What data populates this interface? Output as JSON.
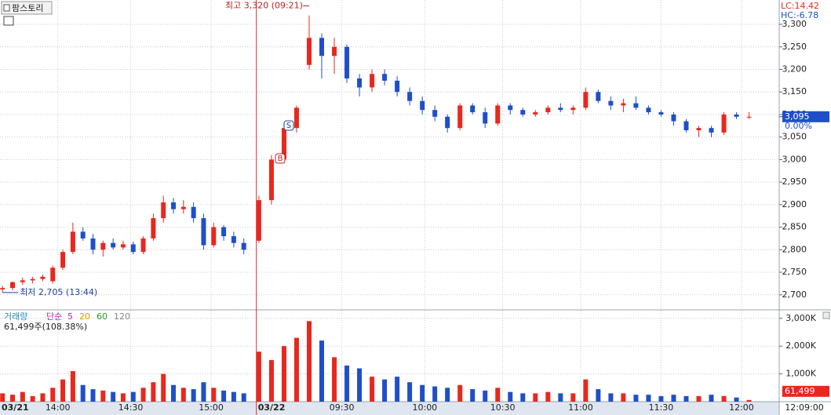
{
  "chart_data": {
    "type": "candlestick",
    "title": "팜스토리",
    "indicators": [
      "LC:14.42",
      "HC:-6.78"
    ],
    "up_color": "#e8281e",
    "down_color": "#1f4fc8",
    "grid": true,
    "x": [
      1,
      5,
      9,
      13,
      17,
      21,
      25,
      29,
      33,
      37,
      41,
      45,
      49,
      53,
      57,
      61,
      65,
      69,
      73,
      77,
      81,
      85,
      89,
      93,
      97,
      103,
      108,
      113,
      118,
      123,
      128,
      133,
      138,
      143,
      148,
      153,
      158,
      163,
      168,
      173,
      178,
      183,
      188,
      193,
      198,
      203,
      208,
      213,
      218,
      223,
      228,
      233,
      238,
      243,
      248,
      253,
      258,
      263,
      268,
      273,
      278,
      283,
      288,
      293,
      298
    ],
    "open": [
      2712,
      2715,
      2728,
      2732,
      2735,
      2730,
      2760,
      2795,
      2840,
      2825,
      2800,
      2815,
      2805,
      2812,
      2795,
      2825,
      2870,
      2905,
      2890,
      2895,
      2870,
      2810,
      2850,
      2830,
      2815,
      2820,
      2910,
      3000,
      3070,
      3210,
      3270,
      3230,
      3250,
      3180,
      3160,
      3190,
      3175,
      3150,
      3130,
      3110,
      3095,
      3070,
      3120,
      3105,
      3080,
      3120,
      3110,
      3100,
      3105,
      3115,
      3110,
      3115,
      3150,
      3130,
      3120,
      3125,
      3115,
      3105,
      3100,
      3085,
      3065,
      3070,
      3060,
      3100,
      3095
    ],
    "high": [
      2720,
      2730,
      2738,
      2740,
      2745,
      2765,
      2800,
      2860,
      2850,
      2835,
      2820,
      2825,
      2820,
      2818,
      2830,
      2880,
      2920,
      2915,
      2910,
      2905,
      2880,
      2860,
      2855,
      2840,
      2825,
      2920,
      3010,
      3080,
      3120,
      3320,
      3280,
      3270,
      3255,
      3190,
      3200,
      3200,
      3185,
      3160,
      3140,
      3120,
      3100,
      3125,
      3125,
      3115,
      3125,
      3125,
      3115,
      3110,
      3120,
      3125,
      3120,
      3160,
      3155,
      3140,
      3135,
      3140,
      3120,
      3110,
      3105,
      3090,
      3075,
      3075,
      3105,
      3105,
      3105
    ],
    "low": [
      2705,
      2710,
      2722,
      2725,
      2730,
      2725,
      2755,
      2790,
      2820,
      2790,
      2785,
      2800,
      2800,
      2790,
      2790,
      2820,
      2860,
      2880,
      2880,
      2860,
      2800,
      2805,
      2820,
      2805,
      2790,
      2815,
      2900,
      2995,
      3060,
      3200,
      3180,
      3190,
      3170,
      3140,
      3150,
      3165,
      3140,
      3120,
      3100,
      3085,
      3060,
      3065,
      3100,
      3070,
      3075,
      3100,
      3095,
      3095,
      3100,
      3105,
      3100,
      3110,
      3125,
      3110,
      3105,
      3110,
      3100,
      3095,
      3075,
      3060,
      3050,
      3050,
      3055,
      3090,
      3090
    ],
    "close": [
      2715,
      2728,
      2732,
      2735,
      2740,
      2760,
      2795,
      2840,
      2825,
      2800,
      2815,
      2805,
      2812,
      2795,
      2825,
      2870,
      2905,
      2890,
      2895,
      2870,
      2810,
      2850,
      2830,
      2815,
      2800,
      2910,
      3000,
      3070,
      3115,
      3270,
      3230,
      3250,
      3180,
      3160,
      3190,
      3175,
      3150,
      3130,
      3110,
      3095,
      3070,
      3120,
      3105,
      3080,
      3120,
      3110,
      3100,
      3105,
      3115,
      3110,
      3115,
      3150,
      3130,
      3120,
      3125,
      3115,
      3105,
      3100,
      3085,
      3065,
      3070,
      3060,
      3100,
      3095,
      3095
    ],
    "xlim": [
      0,
      310
    ],
    "xticks": [
      {
        "value": 0,
        "label": "03/21"
      },
      {
        "value": 23,
        "label": "14:00"
      },
      {
        "value": 52,
        "label": "14:30"
      },
      {
        "value": 84,
        "label": "15:00"
      },
      {
        "value": 102,
        "label": "03/22"
      },
      {
        "value": 136,
        "label": "09:30"
      },
      {
        "value": 169,
        "label": "10:00"
      },
      {
        "value": 200,
        "label": "10:30"
      },
      {
        "value": 231,
        "label": "11:00"
      },
      {
        "value": 263,
        "label": "11:30"
      },
      {
        "value": 295,
        "label": "12:00"
      }
    ],
    "current_time": "12:09:00",
    "ylim": [
      2670,
      3354
    ],
    "yticks": [
      {
        "value": 2700,
        "label": "2,700"
      },
      {
        "value": 2750,
        "label": "2,750"
      },
      {
        "value": 2800,
        "label": "2,800"
      },
      {
        "value": 2850,
        "label": "2,850"
      },
      {
        "value": 2900,
        "label": "2,900"
      },
      {
        "value": 2950,
        "label": "2,950"
      },
      {
        "value": 3000,
        "label": "3,000"
      },
      {
        "value": 3050,
        "label": "3,050"
      },
      {
        "value": 3100,
        "label": "3,100"
      },
      {
        "value": 3150,
        "label": "3,150"
      },
      {
        "value": 3200,
        "label": "3,200"
      },
      {
        "value": 3250,
        "label": "3,250"
      },
      {
        "value": 3300,
        "label": "3,300"
      }
    ],
    "last_price": {
      "value": 3095,
      "label": "3,095"
    },
    "last_change": "0.00%",
    "high_note": "최고 3,320 (09:21)",
    "low_note": "최저 2,705 (13:44)",
    "signals": [
      "S",
      "B"
    ],
    "volume": {
      "label": "거래량",
      "summary": "61,499주(108.38%)",
      "values": [
        300000,
        250000,
        350000,
        200000,
        300000,
        500000,
        800000,
        1100000,
        600000,
        450000,
        400000,
        350000,
        300000,
        350000,
        500000,
        700000,
        1000000,
        600000,
        500000,
        450000,
        700000,
        500000,
        400000,
        350000,
        300000,
        1800000,
        1500000,
        2000000,
        2300000,
        2900000,
        2200000,
        1600000,
        1300000,
        1200000,
        900000,
        800000,
        900000,
        700000,
        600000,
        550000,
        500000,
        600000,
        450000,
        400000,
        500000,
        350000,
        300000,
        300000,
        350000,
        300000,
        300000,
        800000,
        450000,
        300000,
        300000,
        250000,
        250000,
        200000,
        250000,
        200000,
        200000,
        250000,
        200000,
        150000,
        61499
      ],
      "ylim": [
        0,
        3220000
      ],
      "yticks": [
        {
          "value": 1000000,
          "label": "1,000K"
        },
        {
          "value": 2000000,
          "label": "2,000K"
        },
        {
          "value": 3000000,
          "label": "3,000K"
        }
      ],
      "last": {
        "value": 61499,
        "label": "61,499"
      },
      "last_ratio": "108.38%",
      "ma_label": "단순",
      "ma": [
        {
          "name": "5",
          "color": "#c020c0"
        },
        {
          "name": "20",
          "color": "#e09a00"
        },
        {
          "name": "60",
          "color": "#2a9a2a"
        },
        {
          "name": "120",
          "color": "#888888"
        }
      ]
    }
  }
}
